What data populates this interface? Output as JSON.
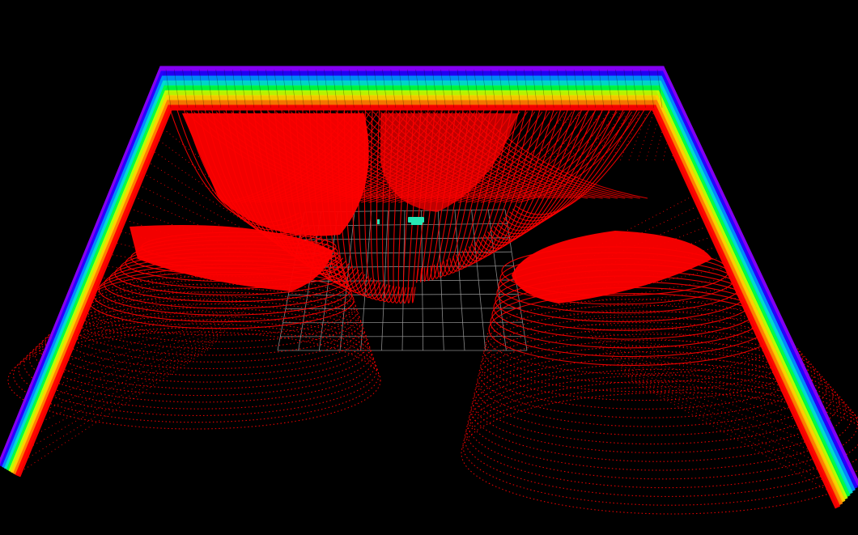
{
  "viewer": {
    "background": "#000000",
    "scan_color": "#ff0000",
    "grid_color": "#a0a0a0",
    "object_color": "#27e6b4",
    "rainbow_colors": [
      "#8a00ff",
      "#2200ff",
      "#0090ff",
      "#00e0d0",
      "#00ff40",
      "#c0ff00",
      "#ffd000",
      "#ff7a00",
      "#ff0000"
    ],
    "grid": {
      "shown": true,
      "cells_x": 12,
      "cells_y": 10
    }
  }
}
